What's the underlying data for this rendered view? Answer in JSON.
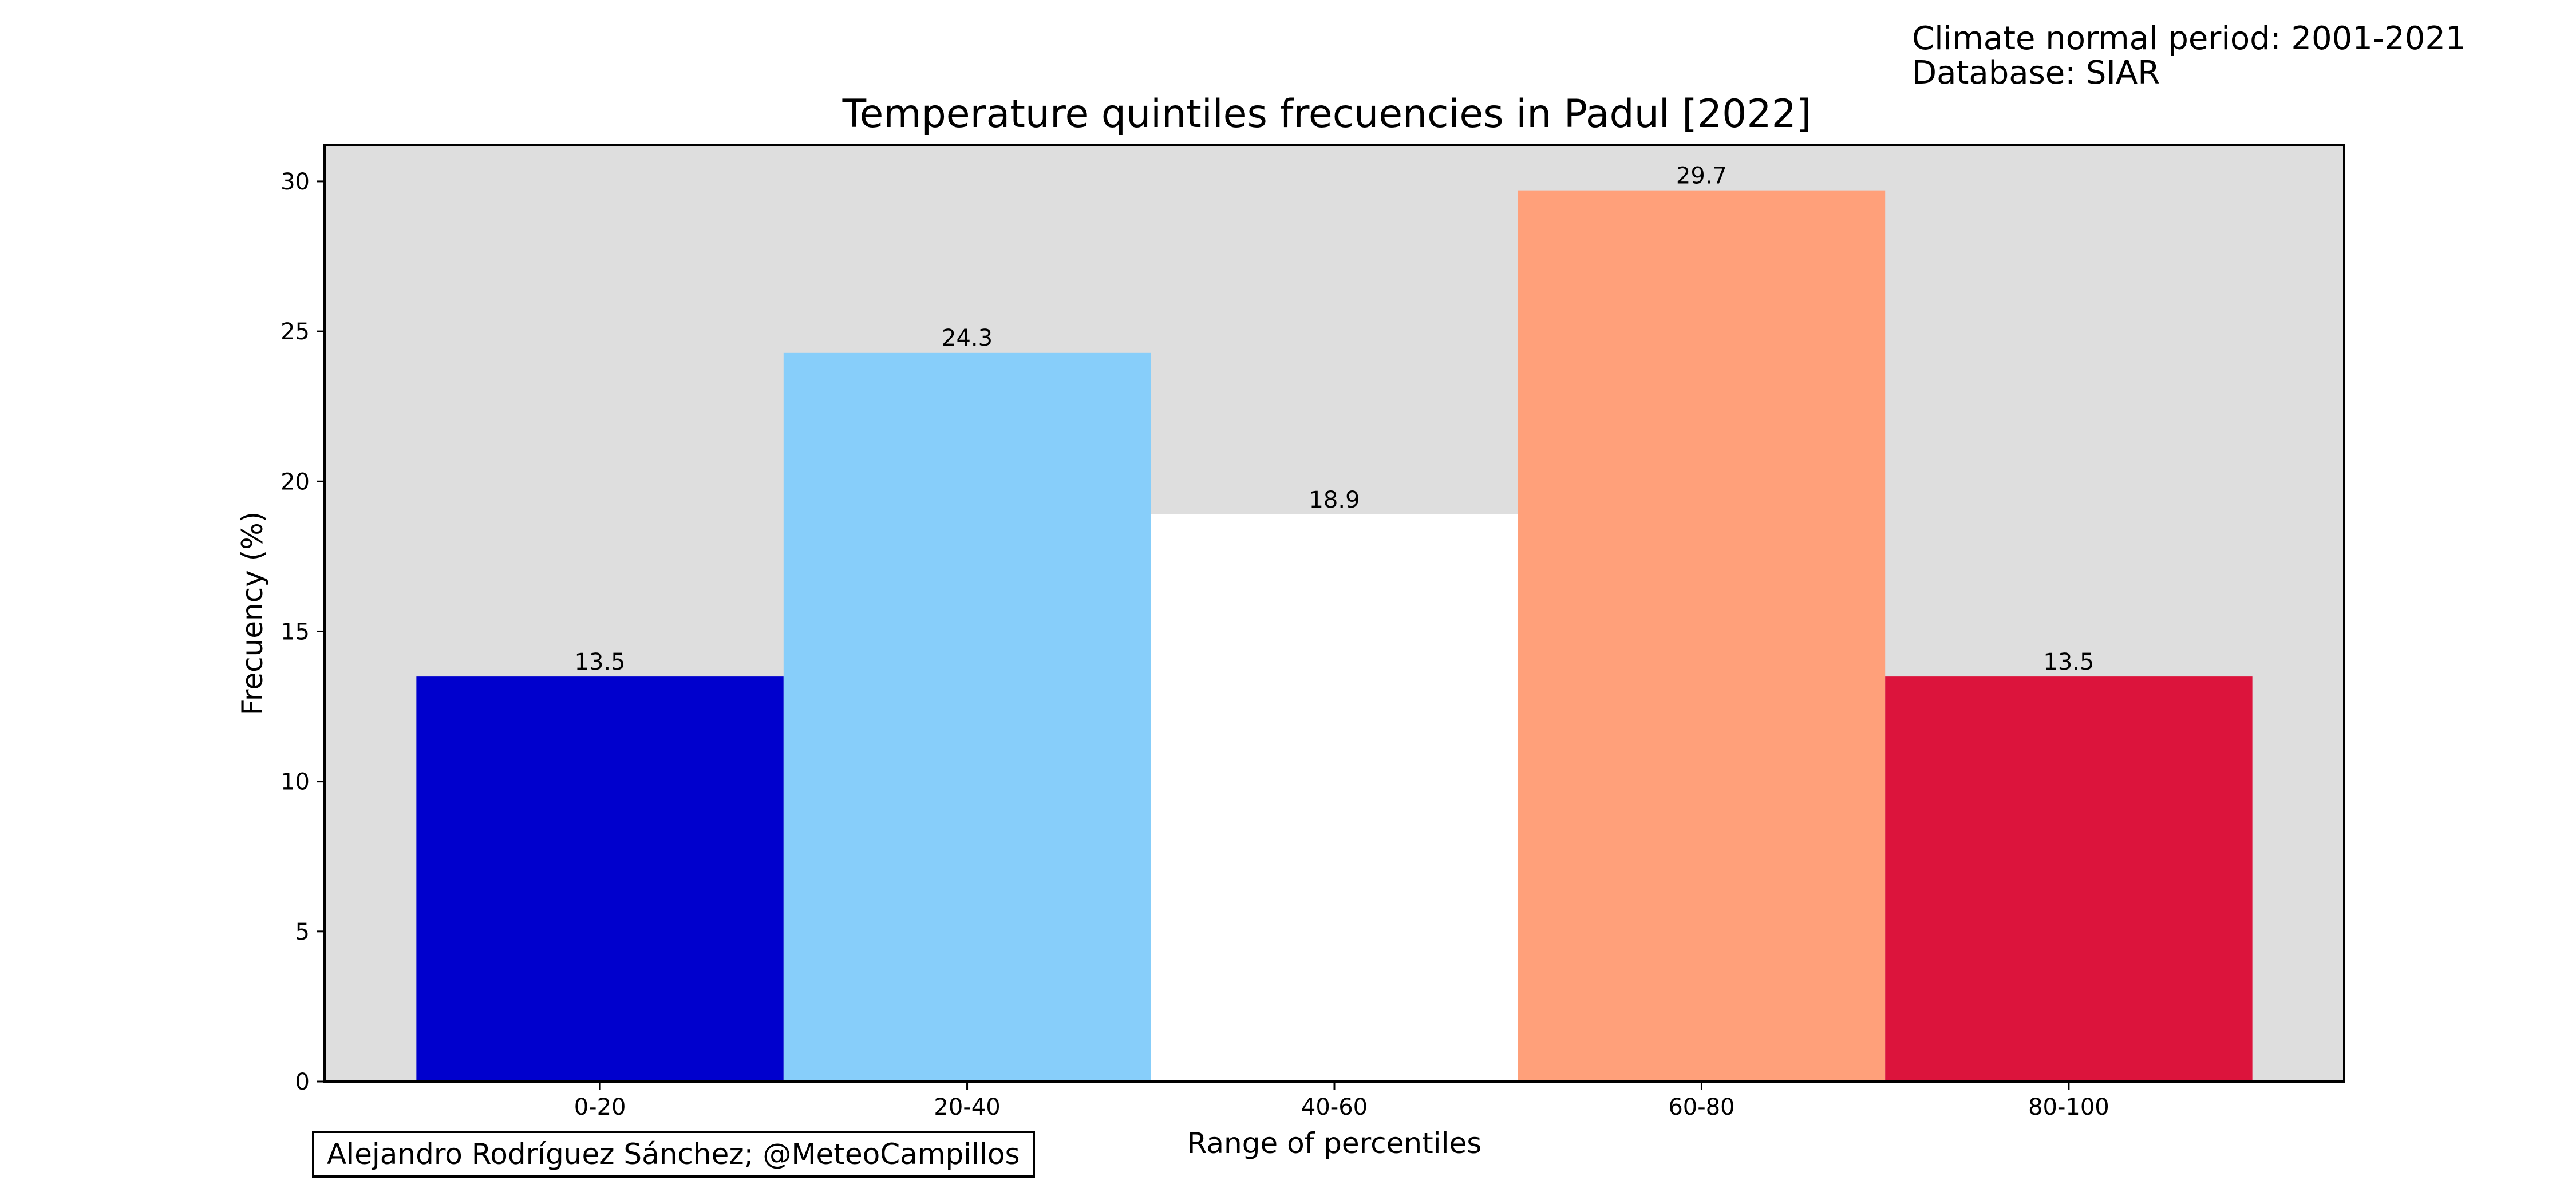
{
  "header": {
    "climate_period": "Climate normal period: 2001-2021",
    "database": "Database: SIAR"
  },
  "credit": "Alejandro Rodríguez Sánchez; @MeteoCampillos",
  "chart_data": {
    "type": "bar",
    "title": "Temperature quintiles frecuencies in Padul [2022]",
    "xlabel": "Range of percentiles",
    "ylabel": "Frecuency (%)",
    "categories": [
      "0-20",
      "20-40",
      "40-60",
      "60-80",
      "80-100"
    ],
    "values": [
      13.5,
      24.3,
      18.9,
      29.7,
      13.5
    ],
    "value_labels": [
      "13.5",
      "24.3",
      "18.9",
      "29.7",
      "13.5"
    ],
    "bar_colors": [
      "#0000cd",
      "#87cefa",
      "#ffffff",
      "#ffa07a",
      "#dc143c"
    ],
    "plot_background": "#dedede",
    "ylim": [
      0,
      31.2
    ],
    "yticks": [
      0,
      5,
      10,
      15,
      20,
      25,
      30
    ],
    "grid": false,
    "legend": "none"
  }
}
